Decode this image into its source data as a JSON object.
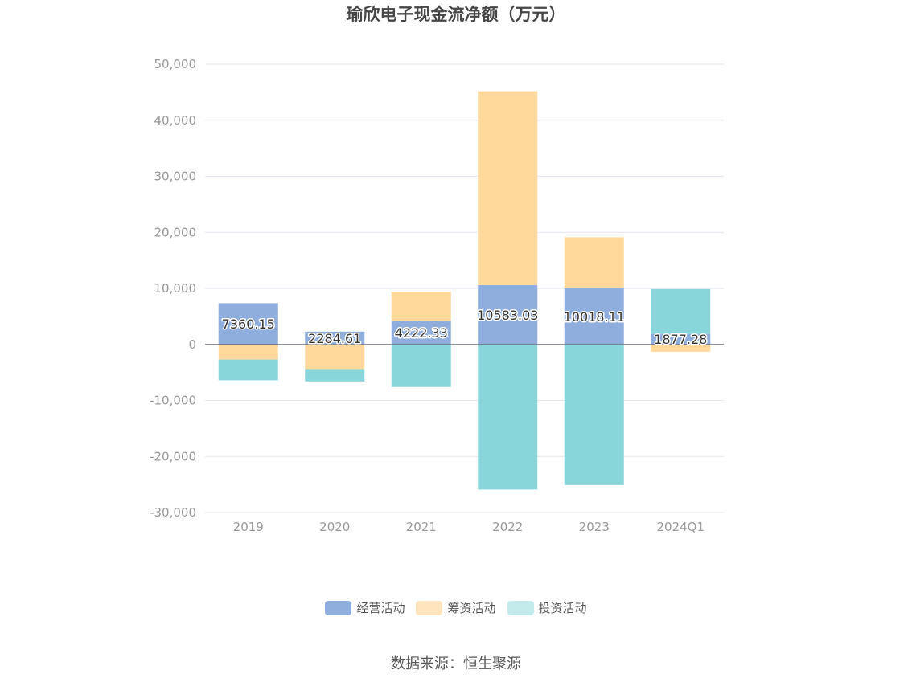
{
  "chart_data": {
    "type": "bar",
    "stacked": true,
    "title": "瑜欣电子现金流净额（万元）",
    "categories": [
      "2019",
      "2020",
      "2021",
      "2022",
      "2023",
      "2024Q1"
    ],
    "series": [
      {
        "name": "经营活动",
        "color": "#8faedd",
        "values": [
          7360.15,
          2284.61,
          4222.33,
          10583.03,
          10018.11,
          1877.28
        ]
      },
      {
        "name": "筹资活动",
        "color": "#ffd89b",
        "values": [
          -2700,
          -4400,
          5200,
          34600,
          9100,
          -1300
        ]
      },
      {
        "name": "投资活动",
        "color": "#88d6d9",
        "values": [
          -3700,
          -2200,
          -7600,
          -25900,
          -25100,
          8000
        ]
      }
    ],
    "data_labels": [
      "7360.15",
      "2284.61",
      "4222.33",
      "10583.03",
      "10018.11",
      "1877.28"
    ],
    "yticks": [
      "50,000",
      "40,000",
      "30,000",
      "20,000",
      "10,000",
      "0",
      "-10,000",
      "-20,000",
      "-30,000"
    ],
    "ylim": [
      -30000,
      50000
    ],
    "grid": true,
    "legend_position": "bottom",
    "legend_colors": [
      "#8faedd",
      "#ffe4bd",
      "#c2eaeb"
    ]
  },
  "source_text": "数据来源：恒生聚源"
}
